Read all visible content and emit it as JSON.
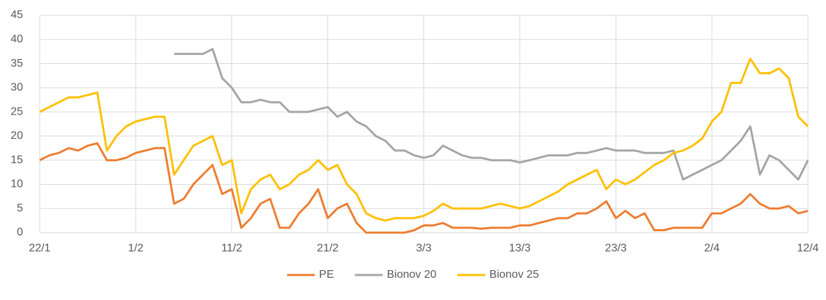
{
  "chart_data": {
    "type": "line",
    "categories": [
      "22/1",
      null,
      null,
      null,
      null,
      null,
      null,
      null,
      null,
      null,
      "1/2",
      null,
      null,
      null,
      null,
      null,
      null,
      null,
      null,
      null,
      "11/2",
      null,
      null,
      null,
      null,
      null,
      null,
      null,
      null,
      null,
      "21/2",
      null,
      null,
      null,
      null,
      null,
      null,
      null,
      null,
      null,
      "3/3",
      null,
      null,
      null,
      null,
      null,
      null,
      null,
      null,
      null,
      "13/3",
      null,
      null,
      null,
      null,
      null,
      null,
      null,
      null,
      null,
      "23/3",
      null,
      null,
      null,
      null,
      null,
      null,
      null,
      null,
      null,
      "2/4",
      null,
      null,
      null,
      null,
      null,
      null,
      null,
      null,
      null,
      "12/4"
    ],
    "series": [
      {
        "name": "PE",
        "color": "#ed7d31",
        "values": [
          15,
          16,
          16.5,
          17.5,
          17,
          18,
          18.5,
          15,
          15,
          15.5,
          16.5,
          17,
          17.5,
          17.5,
          6,
          7,
          10,
          12,
          14,
          8,
          9,
          1,
          3,
          6,
          7,
          1,
          1,
          4,
          6,
          9,
          3,
          5,
          6,
          2,
          0,
          0,
          0,
          0,
          0,
          0.5,
          1.5,
          1.5,
          2,
          1,
          1,
          1,
          0.8,
          1,
          1,
          1,
          1.5,
          1.5,
          2,
          2.5,
          3,
          3,
          4,
          4,
          5,
          6.5,
          3,
          4.5,
          3,
          4,
          0.5,
          0.5,
          1,
          1,
          1,
          1,
          4,
          4,
          5,
          6,
          8,
          6,
          5,
          5,
          5.5,
          4,
          4.5
        ]
      },
      {
        "name": "Bionov 20",
        "color": "#a5a5a5",
        "values": [
          null,
          null,
          null,
          null,
          null,
          null,
          null,
          null,
          null,
          null,
          null,
          null,
          null,
          null,
          37,
          37,
          37,
          37,
          38,
          32,
          30,
          27,
          27,
          27.5,
          27,
          27,
          25,
          25,
          25,
          25.5,
          26,
          24,
          25,
          23,
          22,
          20,
          19,
          17,
          17,
          16,
          15.5,
          16,
          18,
          17,
          16,
          15.5,
          15.5,
          15,
          15,
          15,
          14.5,
          15,
          15.5,
          16,
          16,
          16,
          16.5,
          16.5,
          17,
          17.5,
          17,
          17,
          17,
          16.5,
          16.5,
          16.5,
          17,
          11,
          12,
          13,
          14,
          15,
          17,
          19,
          22,
          12,
          16,
          15,
          13,
          11,
          15
        ]
      },
      {
        "name": "Bionov 25",
        "color": "#ffc000",
        "values": [
          25,
          26,
          27,
          28,
          28,
          28.5,
          29,
          17,
          20,
          22,
          23,
          23.5,
          24,
          24,
          12,
          15,
          18,
          19,
          20,
          14,
          15,
          4,
          9,
          11,
          12,
          9,
          10,
          12,
          13,
          15,
          13,
          14,
          10,
          8,
          4,
          3,
          2.5,
          3,
          3,
          3,
          3.5,
          4.5,
          6,
          5,
          5,
          5,
          5,
          5.5,
          6,
          5.5,
          5,
          5.5,
          6.5,
          7.5,
          8.5,
          10,
          11,
          12,
          13,
          9,
          11,
          10,
          11,
          12.5,
          14,
          15,
          16.5,
          17,
          18,
          19.5,
          23,
          25,
          31,
          31,
          36,
          33,
          33,
          34,
          32,
          24,
          22
        ]
      }
    ],
    "ylim": [
      0,
      45
    ],
    "yticks": [
      0,
      5,
      10,
      15,
      20,
      25,
      30,
      35,
      40,
      45
    ],
    "grid": true,
    "legend": "bottom"
  }
}
